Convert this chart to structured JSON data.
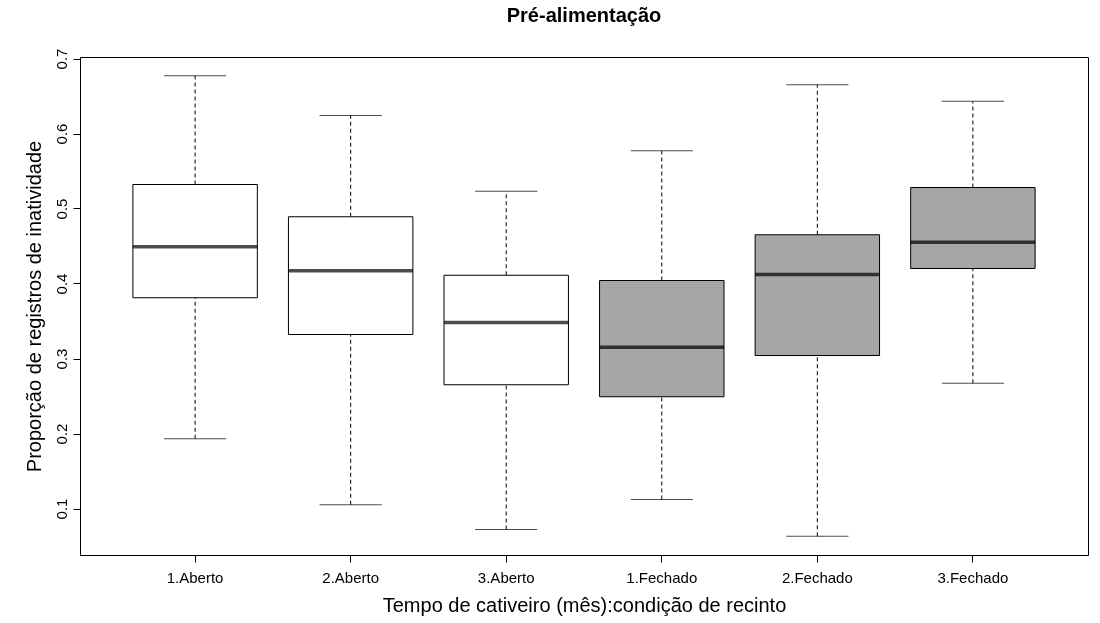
{
  "chart_data": {
    "type": "box",
    "title": "Pré-alimentação",
    "xlabel": "Tempo de cativeiro (mês):condição de recinto",
    "ylabel": "Proporção de registros de inatividade",
    "categories": [
      "1.Aberto",
      "2.Aberto",
      "3.Aberto",
      "1.Fechado",
      "2.Fechado",
      "3.Fechado"
    ],
    "colors": [
      "#ffffff",
      "#ffffff",
      "#ffffff",
      "#a6a6a6",
      "#a6a6a6",
      "#a6a6a6"
    ],
    "boxes": [
      {
        "low": 0.193,
        "q1": 0.381,
        "median": 0.449,
        "q3": 0.532,
        "high": 0.677
      },
      {
        "low": 0.105,
        "q1": 0.332,
        "median": 0.417,
        "q3": 0.489,
        "high": 0.624
      },
      {
        "low": 0.072,
        "q1": 0.265,
        "median": 0.348,
        "q3": 0.411,
        "high": 0.523
      },
      {
        "low": 0.112,
        "q1": 0.249,
        "median": 0.315,
        "q3": 0.404,
        "high": 0.577
      },
      {
        "low": 0.063,
        "q1": 0.304,
        "median": 0.412,
        "q3": 0.465,
        "high": 0.665
      },
      {
        "low": 0.267,
        "q1": 0.42,
        "median": 0.455,
        "q3": 0.528,
        "high": 0.643
      }
    ],
    "ylim": [
      0.038,
      0.702
    ],
    "yticks": [
      0.1,
      0.2,
      0.3,
      0.4,
      0.5,
      0.6,
      0.7
    ]
  }
}
